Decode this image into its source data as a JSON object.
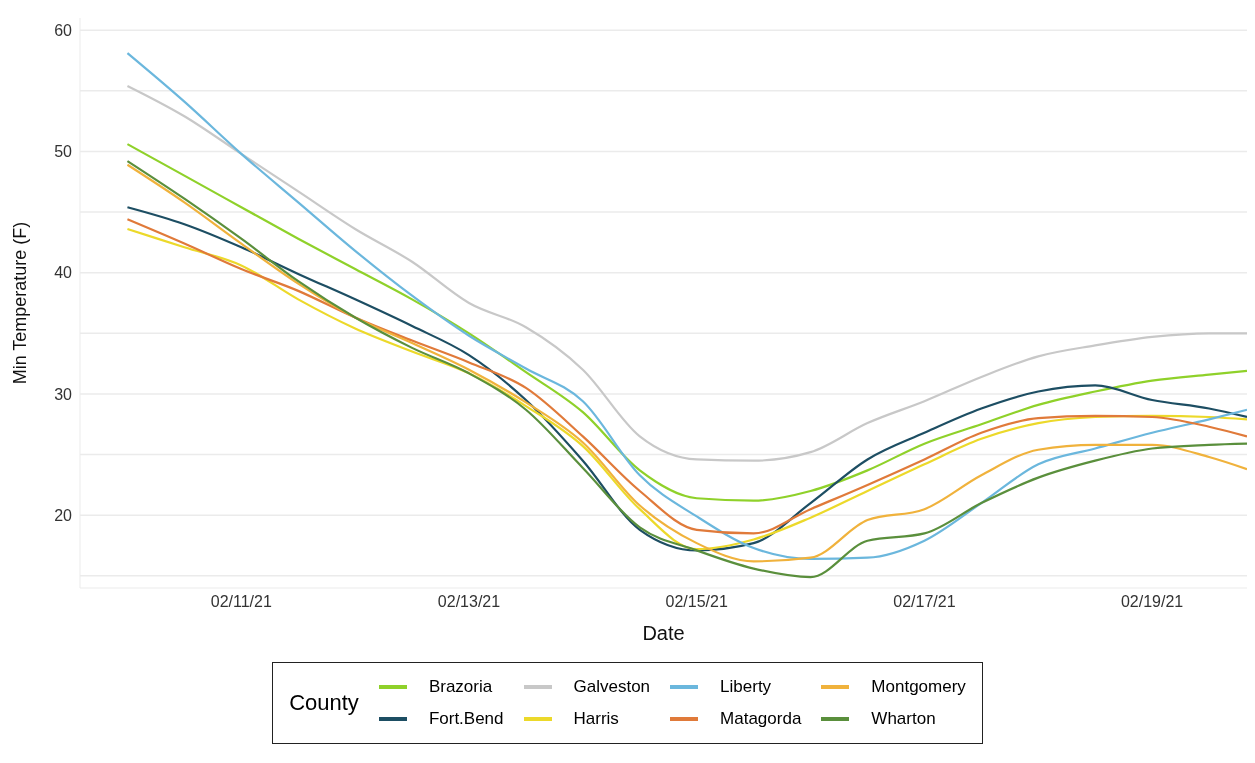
{
  "chart_data": {
    "type": "line",
    "xlabel": "Date",
    "ylabel": "Min Temperature (F)",
    "legend_title": "County",
    "legend": "bottom",
    "grid": "y",
    "line_style": "solid",
    "marker": "none",
    "x": [
      "--02-10T00:00",
      "--02-10T12:00",
      "--02-11T00:00",
      "--02-11T12:00",
      "--02-12T00:00",
      "--02-12T12:00",
      "--02-13T00:00",
      "--02-13T12:00",
      "--02-14T00:00",
      "--02-14T12:00",
      "--02-15T00:00",
      "--02-15T12:00",
      "--02-16T00:00",
      "--02-16T12:00",
      "--02-17T00:00",
      "--02-17T12:00",
      "--02-18T00:00",
      "--02-18T12:00",
      "--02-19T00:00",
      "--02-19T12:00",
      "--02-19T20:00"
    ],
    "xlim": [
      "--02-09T14:00",
      "--02-19T20:00"
    ],
    "xticks": [
      {
        "value": "--02-11",
        "label": "02/11/21"
      },
      {
        "value": "--02-13",
        "label": "02/13/21"
      },
      {
        "value": "--02-15",
        "label": "02/15/21"
      },
      {
        "value": "--02-17",
        "label": "02/17/21"
      },
      {
        "value": "--02-19",
        "label": "02/19/21"
      }
    ],
    "ylim": [
      14,
      61
    ],
    "yticks": [
      {
        "value": 15,
        "label": null
      },
      20,
      {
        "value": 25,
        "label": null
      },
      30,
      {
        "value": 35,
        "label": null
      },
      40,
      {
        "value": 45,
        "label": null
      },
      50,
      {
        "value": 55,
        "label": null
      },
      60
    ],
    "series": [
      {
        "name": "Brazoria",
        "color": "#8fd12a",
        "values": [
          50.6,
          48,
          45.4,
          42.8,
          40.3,
          37.8,
          35,
          31.8,
          28.5,
          23.7,
          21.4,
          21.2,
          22,
          23.7,
          25.9,
          27.5,
          29.1,
          30.2,
          31.1,
          31.6,
          31.9
        ]
      },
      {
        "name": "Fort.Bend",
        "color": "#1d4e63",
        "values": [
          45.4,
          44,
          42.1,
          39.9,
          37.8,
          35.6,
          33.2,
          29.5,
          24.5,
          18.8,
          17.1,
          17.7,
          21,
          24.6,
          26.8,
          28.8,
          30.2,
          30.7,
          29.5,
          28.8,
          28.1
        ]
      },
      {
        "name": "Galveston",
        "color": "#c8c8c8",
        "values": [
          55.4,
          52.9,
          49.8,
          46.7,
          43.6,
          40.9,
          37.5,
          35.5,
          32,
          26.5,
          24.6,
          24.5,
          25.2,
          27.6,
          29.4,
          31.4,
          33.1,
          34,
          34.7,
          35,
          35
        ]
      },
      {
        "name": "Harris",
        "color": "#ecd92a",
        "values": [
          43.6,
          42.1,
          40.6,
          37.8,
          35.4,
          33.5,
          31.7,
          29,
          25.7,
          20.5,
          17.2,
          18,
          19.8,
          22,
          24.2,
          26.3,
          27.6,
          28.1,
          28.2,
          28.1,
          27.9
        ]
      },
      {
        "name": "Liberty",
        "color": "#6bb7dd",
        "values": [
          58.1,
          54.1,
          49.8,
          45.8,
          41.8,
          38.1,
          34.8,
          32.1,
          29.4,
          23.3,
          19.9,
          17.3,
          16.4,
          16.5,
          17.9,
          21,
          24.2,
          25.5,
          26.8,
          27.9,
          28.7
        ]
      },
      {
        "name": "Matagorda",
        "color": "#e07a3a",
        "values": [
          44.4,
          42.4,
          40.3,
          38.5,
          36.3,
          34.4,
          32.6,
          30.5,
          26.5,
          22,
          18.8,
          18.5,
          20.5,
          22.5,
          24.6,
          26.8,
          28,
          28.2,
          28.1,
          27.3,
          26.5
        ]
      },
      {
        "name": "Montgomery",
        "color": "#f0b23c",
        "values": [
          48.9,
          45.8,
          42.4,
          39.1,
          36.3,
          34.2,
          32,
          29.3,
          26,
          20.8,
          17.7,
          16.2,
          16.5,
          19.6,
          20.5,
          23.3,
          25.4,
          25.8,
          25.8,
          24.8,
          23.8
        ]
      },
      {
        "name": "Wharton",
        "color": "#5a8f3c",
        "values": [
          49.2,
          46.1,
          42.8,
          39.3,
          36.3,
          33.8,
          31.7,
          28.7,
          23.9,
          19,
          17.1,
          15.6,
          14.9,
          17.9,
          18.5,
          21,
          23.1,
          24.5,
          25.5,
          25.8,
          25.9
        ]
      }
    ]
  }
}
